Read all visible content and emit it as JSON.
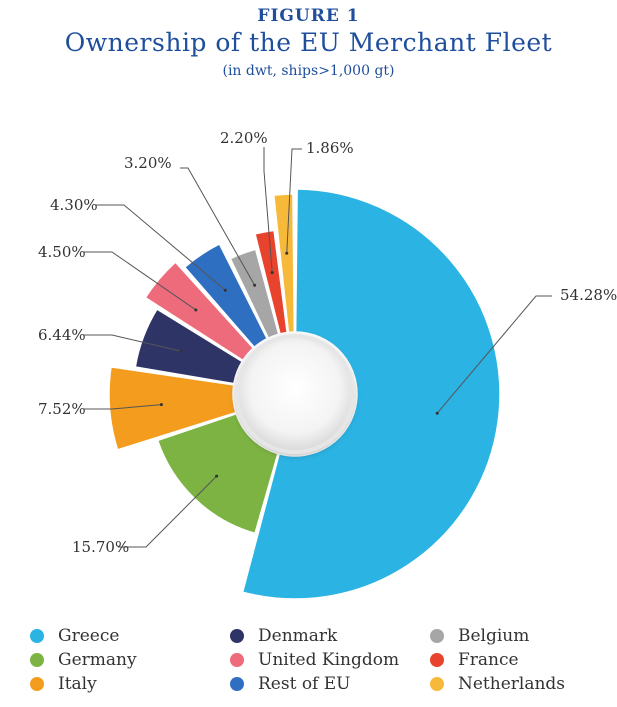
{
  "header": {
    "figure_label": "FIGURE 1",
    "title": "Ownership of the EU Merchant Fleet",
    "subtitle": "(in dwt, ships>1,000 gt)"
  },
  "chart_data": {
    "type": "pie",
    "variant": "exploded donut",
    "title": "Ownership of the EU Merchant Fleet",
    "subtitle": "(in dwt, ships>1,000 gt)",
    "unit": "%",
    "slices": [
      {
        "name": "Greece",
        "value": 54.28,
        "label": "54.28%",
        "color": "#2bb3e3"
      },
      {
        "name": "Germany",
        "value": 15.7,
        "label": "15.70%",
        "color": "#7cb342"
      },
      {
        "name": "Italy",
        "value": 7.52,
        "label": "7.52%",
        "color": "#f39c1d"
      },
      {
        "name": "Denmark",
        "value": 6.44,
        "label": "6.44%",
        "color": "#2f3466"
      },
      {
        "name": "United Kingdom",
        "value": 4.5,
        "label": "4.50%",
        "color": "#ee6b7b"
      },
      {
        "name": "Rest of EU",
        "value": 4.3,
        "label": "4.30%",
        "color": "#2f6fc2"
      },
      {
        "name": "Belgium",
        "value": 3.2,
        "label": "3.20%",
        "color": "#a6a6a6"
      },
      {
        "name": "France",
        "value": 2.2,
        "label": "2.20%",
        "color": "#e8432c"
      },
      {
        "name": "Netherlands",
        "value": 1.86,
        "label": "1.86%",
        "color": "#f7b93a"
      }
    ],
    "legend_placement": "bottom",
    "legend": [
      "Greece",
      "Denmark",
      "Belgium",
      "Germany",
      "United Kingdom",
      "France",
      "Italy",
      "Rest of EU",
      "Netherlands"
    ]
  }
}
